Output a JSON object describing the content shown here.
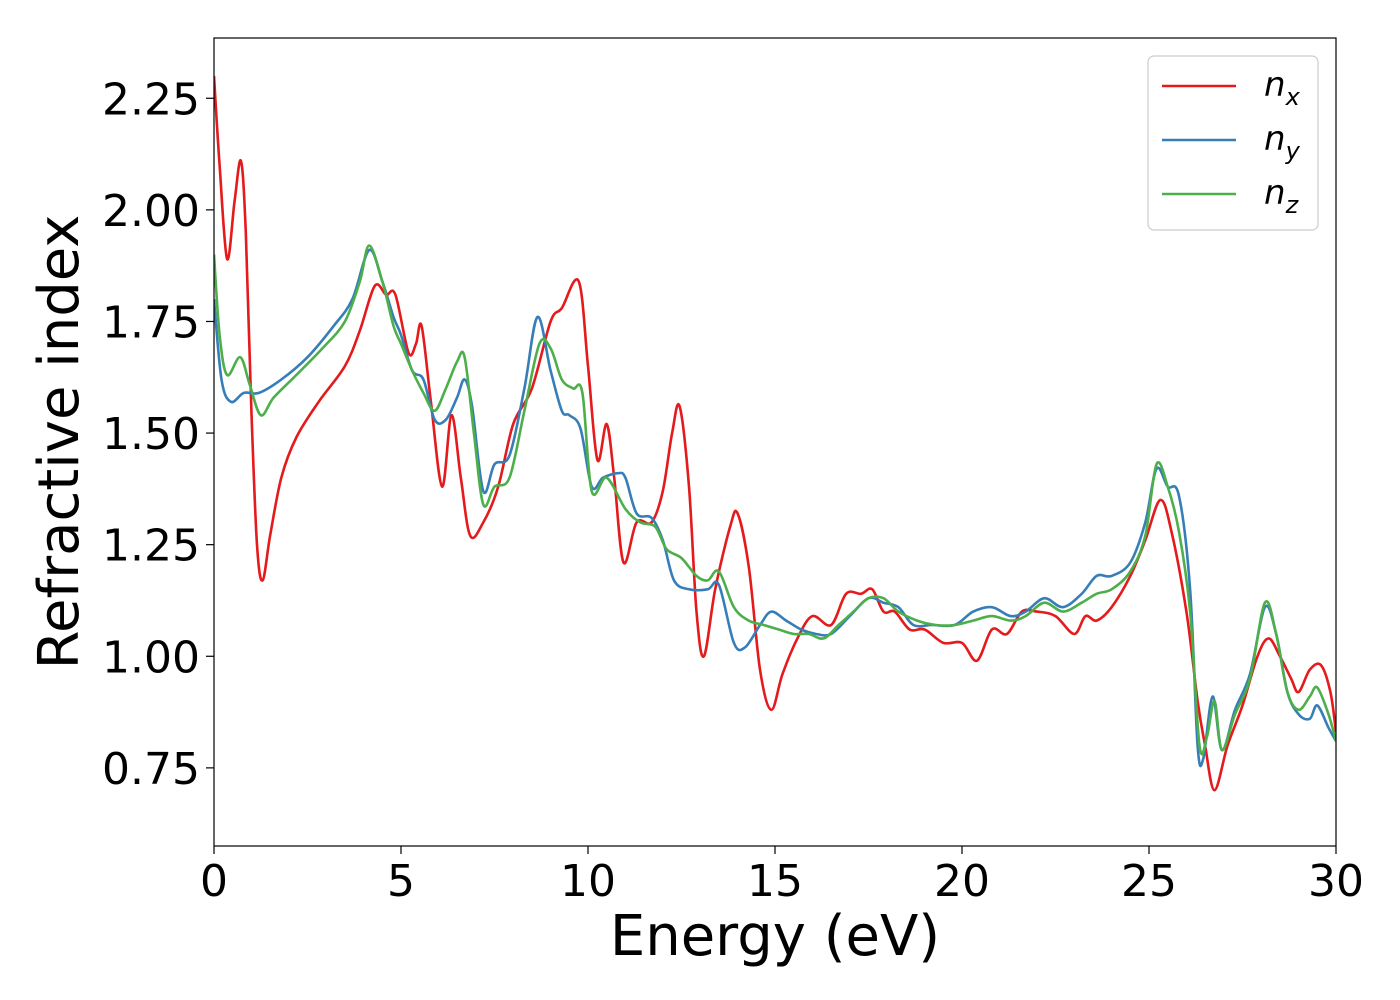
{
  "chart_data": {
    "type": "line",
    "xlabel": "Energy (eV)",
    "ylabel": "Refractive index",
    "xlim": [
      0,
      30
    ],
    "ylim": [
      0.575,
      2.385
    ],
    "x_ticks": [
      0,
      5,
      10,
      15,
      20,
      25,
      30
    ],
    "x_tick_labels": [
      "0",
      "5",
      "10",
      "15",
      "20",
      "25",
      "30"
    ],
    "y_ticks": [
      0.75,
      1.0,
      1.25,
      1.5,
      1.75,
      2.0,
      2.25
    ],
    "y_tick_labels": [
      "0.75",
      "1.00",
      "1.25",
      "1.50",
      "1.75",
      "2.00",
      "2.25"
    ],
    "grid": false,
    "legend_position": "top-right",
    "series": [
      {
        "name": "n_x",
        "label_base": "n",
        "label_sub": "x",
        "color": "#e41a1c",
        "points": [
          [
            0,
            2.3
          ],
          [
            0.15,
            2.1
          ],
          [
            0.35,
            1.89
          ],
          [
            0.55,
            2.02
          ],
          [
            0.72,
            2.11
          ],
          [
            0.85,
            1.95
          ],
          [
            1.0,
            1.55
          ],
          [
            1.15,
            1.25
          ],
          [
            1.3,
            1.17
          ],
          [
            1.5,
            1.27
          ],
          [
            1.8,
            1.4
          ],
          [
            2.2,
            1.49
          ],
          [
            2.8,
            1.57
          ],
          [
            3.5,
            1.65
          ],
          [
            3.9,
            1.73
          ],
          [
            4.3,
            1.83
          ],
          [
            4.6,
            1.81
          ],
          [
            4.85,
            1.81
          ],
          [
            5.2,
            1.68
          ],
          [
            5.4,
            1.7
          ],
          [
            5.55,
            1.74
          ],
          [
            5.8,
            1.57
          ],
          [
            6.1,
            1.38
          ],
          [
            6.35,
            1.54
          ],
          [
            6.6,
            1.4
          ],
          [
            6.85,
            1.27
          ],
          [
            7.2,
            1.3
          ],
          [
            7.6,
            1.38
          ],
          [
            8.0,
            1.52
          ],
          [
            8.5,
            1.6
          ],
          [
            9.0,
            1.75
          ],
          [
            9.3,
            1.78
          ],
          [
            9.75,
            1.84
          ],
          [
            10.0,
            1.65
          ],
          [
            10.25,
            1.44
          ],
          [
            10.5,
            1.52
          ],
          [
            10.7,
            1.4
          ],
          [
            10.95,
            1.21
          ],
          [
            11.3,
            1.3
          ],
          [
            11.7,
            1.3
          ],
          [
            12.0,
            1.37
          ],
          [
            12.25,
            1.5
          ],
          [
            12.45,
            1.56
          ],
          [
            12.7,
            1.38
          ],
          [
            12.9,
            1.1
          ],
          [
            13.1,
            1.0
          ],
          [
            13.4,
            1.15
          ],
          [
            13.8,
            1.29
          ],
          [
            14.0,
            1.32
          ],
          [
            14.3,
            1.2
          ],
          [
            14.6,
            0.97
          ],
          [
            14.9,
            0.88
          ],
          [
            15.2,
            0.96
          ],
          [
            15.6,
            1.04
          ],
          [
            16.0,
            1.09
          ],
          [
            16.5,
            1.07
          ],
          [
            16.9,
            1.14
          ],
          [
            17.3,
            1.14
          ],
          [
            17.6,
            1.15
          ],
          [
            17.9,
            1.1
          ],
          [
            18.2,
            1.1
          ],
          [
            18.6,
            1.06
          ],
          [
            19.0,
            1.06
          ],
          [
            19.5,
            1.03
          ],
          [
            20.0,
            1.03
          ],
          [
            20.4,
            0.99
          ],
          [
            20.8,
            1.06
          ],
          [
            21.2,
            1.05
          ],
          [
            21.6,
            1.1
          ],
          [
            22.0,
            1.1
          ],
          [
            22.5,
            1.09
          ],
          [
            23.0,
            1.05
          ],
          [
            23.3,
            1.09
          ],
          [
            23.6,
            1.08
          ],
          [
            24.0,
            1.11
          ],
          [
            24.5,
            1.18
          ],
          [
            24.9,
            1.26
          ],
          [
            25.3,
            1.35
          ],
          [
            25.6,
            1.28
          ],
          [
            26.0,
            1.1
          ],
          [
            26.3,
            0.9
          ],
          [
            26.5,
            0.8
          ],
          [
            26.75,
            0.7
          ],
          [
            27.1,
            0.8
          ],
          [
            27.5,
            0.89
          ],
          [
            27.9,
            1.0
          ],
          [
            28.2,
            1.04
          ],
          [
            28.5,
            1.0
          ],
          [
            28.8,
            0.95
          ],
          [
            29.0,
            0.92
          ],
          [
            29.3,
            0.97
          ],
          [
            29.6,
            0.98
          ],
          [
            29.85,
            0.92
          ],
          [
            30.0,
            0.83
          ]
        ]
      },
      {
        "name": "n_y",
        "label_base": "n",
        "label_sub": "y",
        "color": "#377eb8",
        "points": [
          [
            0,
            1.8
          ],
          [
            0.2,
            1.62
          ],
          [
            0.45,
            1.57
          ],
          [
            0.8,
            1.59
          ],
          [
            1.2,
            1.59
          ],
          [
            1.8,
            1.62
          ],
          [
            2.5,
            1.67
          ],
          [
            3.2,
            1.74
          ],
          [
            3.7,
            1.8
          ],
          [
            4.15,
            1.91
          ],
          [
            4.5,
            1.84
          ],
          [
            4.8,
            1.76
          ],
          [
            5.0,
            1.72
          ],
          [
            5.3,
            1.64
          ],
          [
            5.6,
            1.62
          ],
          [
            5.9,
            1.53
          ],
          [
            6.2,
            1.53
          ],
          [
            6.5,
            1.58
          ],
          [
            6.7,
            1.62
          ],
          [
            6.9,
            1.56
          ],
          [
            7.2,
            1.37
          ],
          [
            7.5,
            1.43
          ],
          [
            7.9,
            1.45
          ],
          [
            8.3,
            1.6
          ],
          [
            8.65,
            1.76
          ],
          [
            9.0,
            1.64
          ],
          [
            9.3,
            1.55
          ],
          [
            9.5,
            1.54
          ],
          [
            9.8,
            1.51
          ],
          [
            10.1,
            1.38
          ],
          [
            10.4,
            1.4
          ],
          [
            10.8,
            1.41
          ],
          [
            11.0,
            1.4
          ],
          [
            11.3,
            1.32
          ],
          [
            11.7,
            1.31
          ],
          [
            12.0,
            1.26
          ],
          [
            12.3,
            1.17
          ],
          [
            12.7,
            1.15
          ],
          [
            13.2,
            1.15
          ],
          [
            13.5,
            1.16
          ],
          [
            13.9,
            1.03
          ],
          [
            14.2,
            1.02
          ],
          [
            14.6,
            1.07
          ],
          [
            14.9,
            1.1
          ],
          [
            15.3,
            1.08
          ],
          [
            15.7,
            1.06
          ],
          [
            16.1,
            1.05
          ],
          [
            16.5,
            1.05
          ],
          [
            17.0,
            1.09
          ],
          [
            17.5,
            1.13
          ],
          [
            17.9,
            1.12
          ],
          [
            18.3,
            1.11
          ],
          [
            18.7,
            1.07
          ],
          [
            19.2,
            1.07
          ],
          [
            19.8,
            1.07
          ],
          [
            20.3,
            1.1
          ],
          [
            20.8,
            1.11
          ],
          [
            21.3,
            1.09
          ],
          [
            21.7,
            1.1
          ],
          [
            22.2,
            1.13
          ],
          [
            22.7,
            1.11
          ],
          [
            23.2,
            1.14
          ],
          [
            23.6,
            1.18
          ],
          [
            24.0,
            1.18
          ],
          [
            24.5,
            1.21
          ],
          [
            24.9,
            1.3
          ],
          [
            25.2,
            1.42
          ],
          [
            25.5,
            1.38
          ],
          [
            25.8,
            1.36
          ],
          [
            26.1,
            1.15
          ],
          [
            26.3,
            0.8
          ],
          [
            26.45,
            0.77
          ],
          [
            26.7,
            0.91
          ],
          [
            26.95,
            0.79
          ],
          [
            27.3,
            0.88
          ],
          [
            27.7,
            0.96
          ],
          [
            28.1,
            1.11
          ],
          [
            28.4,
            1.05
          ],
          [
            28.7,
            0.92
          ],
          [
            29.0,
            0.87
          ],
          [
            29.3,
            0.86
          ],
          [
            29.5,
            0.89
          ],
          [
            29.8,
            0.84
          ],
          [
            30.0,
            0.81
          ]
        ]
      },
      {
        "name": "n_z",
        "label_base": "n",
        "label_sub": "z",
        "color": "#4daf4a",
        "points": [
          [
            0,
            1.9
          ],
          [
            0.15,
            1.72
          ],
          [
            0.35,
            1.63
          ],
          [
            0.7,
            1.67
          ],
          [
            0.95,
            1.61
          ],
          [
            1.25,
            1.54
          ],
          [
            1.6,
            1.58
          ],
          [
            2.2,
            1.63
          ],
          [
            2.9,
            1.69
          ],
          [
            3.5,
            1.75
          ],
          [
            3.9,
            1.84
          ],
          [
            4.15,
            1.92
          ],
          [
            4.5,
            1.84
          ],
          [
            4.8,
            1.74
          ],
          [
            5.0,
            1.7
          ],
          [
            5.3,
            1.64
          ],
          [
            5.6,
            1.59
          ],
          [
            5.9,
            1.55
          ],
          [
            6.2,
            1.6
          ],
          [
            6.5,
            1.66
          ],
          [
            6.7,
            1.67
          ],
          [
            6.95,
            1.5
          ],
          [
            7.2,
            1.34
          ],
          [
            7.5,
            1.38
          ],
          [
            7.9,
            1.4
          ],
          [
            8.3,
            1.55
          ],
          [
            8.7,
            1.7
          ],
          [
            9.0,
            1.69
          ],
          [
            9.3,
            1.62
          ],
          [
            9.6,
            1.6
          ],
          [
            9.85,
            1.59
          ],
          [
            10.1,
            1.37
          ],
          [
            10.5,
            1.4
          ],
          [
            11.0,
            1.33
          ],
          [
            11.4,
            1.3
          ],
          [
            11.8,
            1.29
          ],
          [
            12.1,
            1.24
          ],
          [
            12.5,
            1.22
          ],
          [
            12.9,
            1.18
          ],
          [
            13.2,
            1.17
          ],
          [
            13.5,
            1.19
          ],
          [
            13.9,
            1.11
          ],
          [
            14.3,
            1.08
          ],
          [
            14.7,
            1.07
          ],
          [
            15.1,
            1.06
          ],
          [
            15.5,
            1.05
          ],
          [
            15.9,
            1.05
          ],
          [
            16.3,
            1.04
          ],
          [
            16.7,
            1.07
          ],
          [
            17.1,
            1.1
          ],
          [
            17.5,
            1.13
          ],
          [
            17.9,
            1.13
          ],
          [
            18.3,
            1.1
          ],
          [
            18.8,
            1.08
          ],
          [
            19.3,
            1.07
          ],
          [
            19.8,
            1.07
          ],
          [
            20.3,
            1.08
          ],
          [
            20.8,
            1.09
          ],
          [
            21.3,
            1.08
          ],
          [
            21.7,
            1.09
          ],
          [
            22.2,
            1.12
          ],
          [
            22.7,
            1.1
          ],
          [
            23.2,
            1.12
          ],
          [
            23.6,
            1.14
          ],
          [
            24.0,
            1.15
          ],
          [
            24.5,
            1.19
          ],
          [
            24.9,
            1.27
          ],
          [
            25.2,
            1.43
          ],
          [
            25.5,
            1.38
          ],
          [
            25.8,
            1.28
          ],
          [
            26.1,
            1.1
          ],
          [
            26.35,
            0.8
          ],
          [
            26.55,
            0.82
          ],
          [
            26.75,
            0.9
          ],
          [
            26.95,
            0.79
          ],
          [
            27.3,
            0.87
          ],
          [
            27.7,
            0.95
          ],
          [
            28.1,
            1.12
          ],
          [
            28.4,
            1.05
          ],
          [
            28.7,
            0.92
          ],
          [
            29.0,
            0.88
          ],
          [
            29.3,
            0.91
          ],
          [
            29.5,
            0.93
          ],
          [
            29.8,
            0.87
          ],
          [
            30.0,
            0.81
          ]
        ]
      }
    ]
  }
}
